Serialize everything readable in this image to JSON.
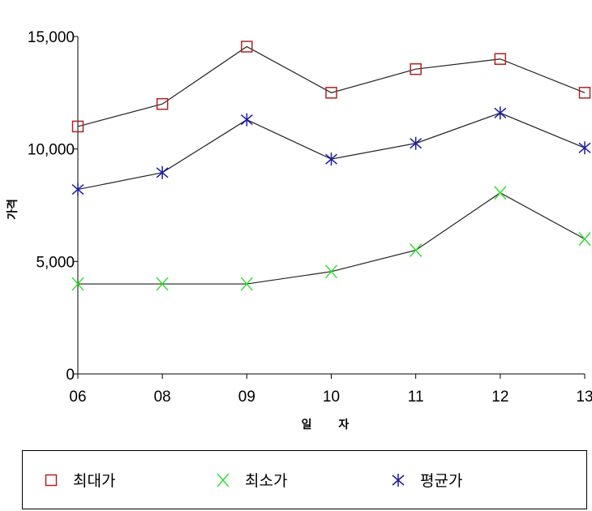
{
  "chart_data": {
    "type": "line",
    "title": "",
    "xlabel": "일 자",
    "ylabel": "가격",
    "categories": [
      "06",
      "08",
      "09",
      "10",
      "11",
      "12",
      "13"
    ],
    "ylim": [
      0,
      15000
    ],
    "yticks": [
      0,
      5000,
      10000,
      15000
    ],
    "ytick_labels": [
      "0",
      "5,000",
      "10,000",
      "15,000"
    ],
    "grid": false,
    "legend_position": "bottom",
    "series": [
      {
        "name": "최대가",
        "marker": "square",
        "color": "#b22222",
        "values": [
          11000,
          12000,
          14550,
          12500,
          13550,
          14000,
          12500
        ]
      },
      {
        "name": "최소가",
        "marker": "x",
        "color": "#33dd33",
        "values": [
          4000,
          4000,
          4000,
          4550,
          5500,
          8050,
          6000
        ]
      },
      {
        "name": "평균가",
        "marker": "asterisk",
        "color": "#1a1aa6",
        "values": [
          8200,
          8950,
          11300,
          9550,
          10250,
          11600,
          10050
        ]
      }
    ]
  }
}
